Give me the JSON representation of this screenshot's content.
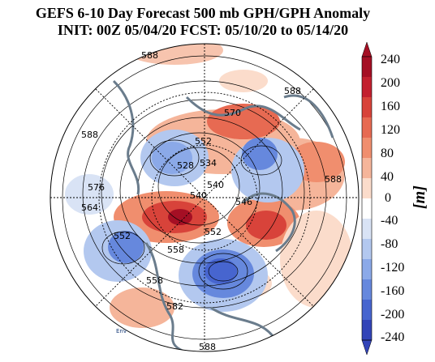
{
  "title": {
    "line1": "GEFS 6-10 Day Forecast 500 mb GPH/GPH Anomaly",
    "line2": "INIT: 00Z 05/04/20   FCST: 05/10/20 to 05/14/20"
  },
  "contour_labels": [
    "588",
    "588",
    "570",
    "552",
    "534",
    "528",
    "540",
    "546",
    "558",
    "588",
    "576",
    "564",
    "552",
    "558",
    "582",
    "588",
    "540",
    "552",
    "588"
  ],
  "colorbar": {
    "units": "[m]",
    "ticks": [
      "240",
      "200",
      "160",
      "120",
      "80",
      "40",
      "0",
      "-40",
      "-80",
      "-120",
      "-160",
      "-200",
      "-240"
    ],
    "colors": [
      "#a50f24",
      "#c3202f",
      "#d8433a",
      "#e76a52",
      "#f08e6e",
      "#f5b59a",
      "#fbdccb",
      "#ffffff",
      "#d9e3f5",
      "#b3c8ef",
      "#8ba9e8",
      "#6688dd",
      "#4765cf",
      "#3344b8"
    ]
  },
  "logo": {
    "text": "Env"
  }
}
